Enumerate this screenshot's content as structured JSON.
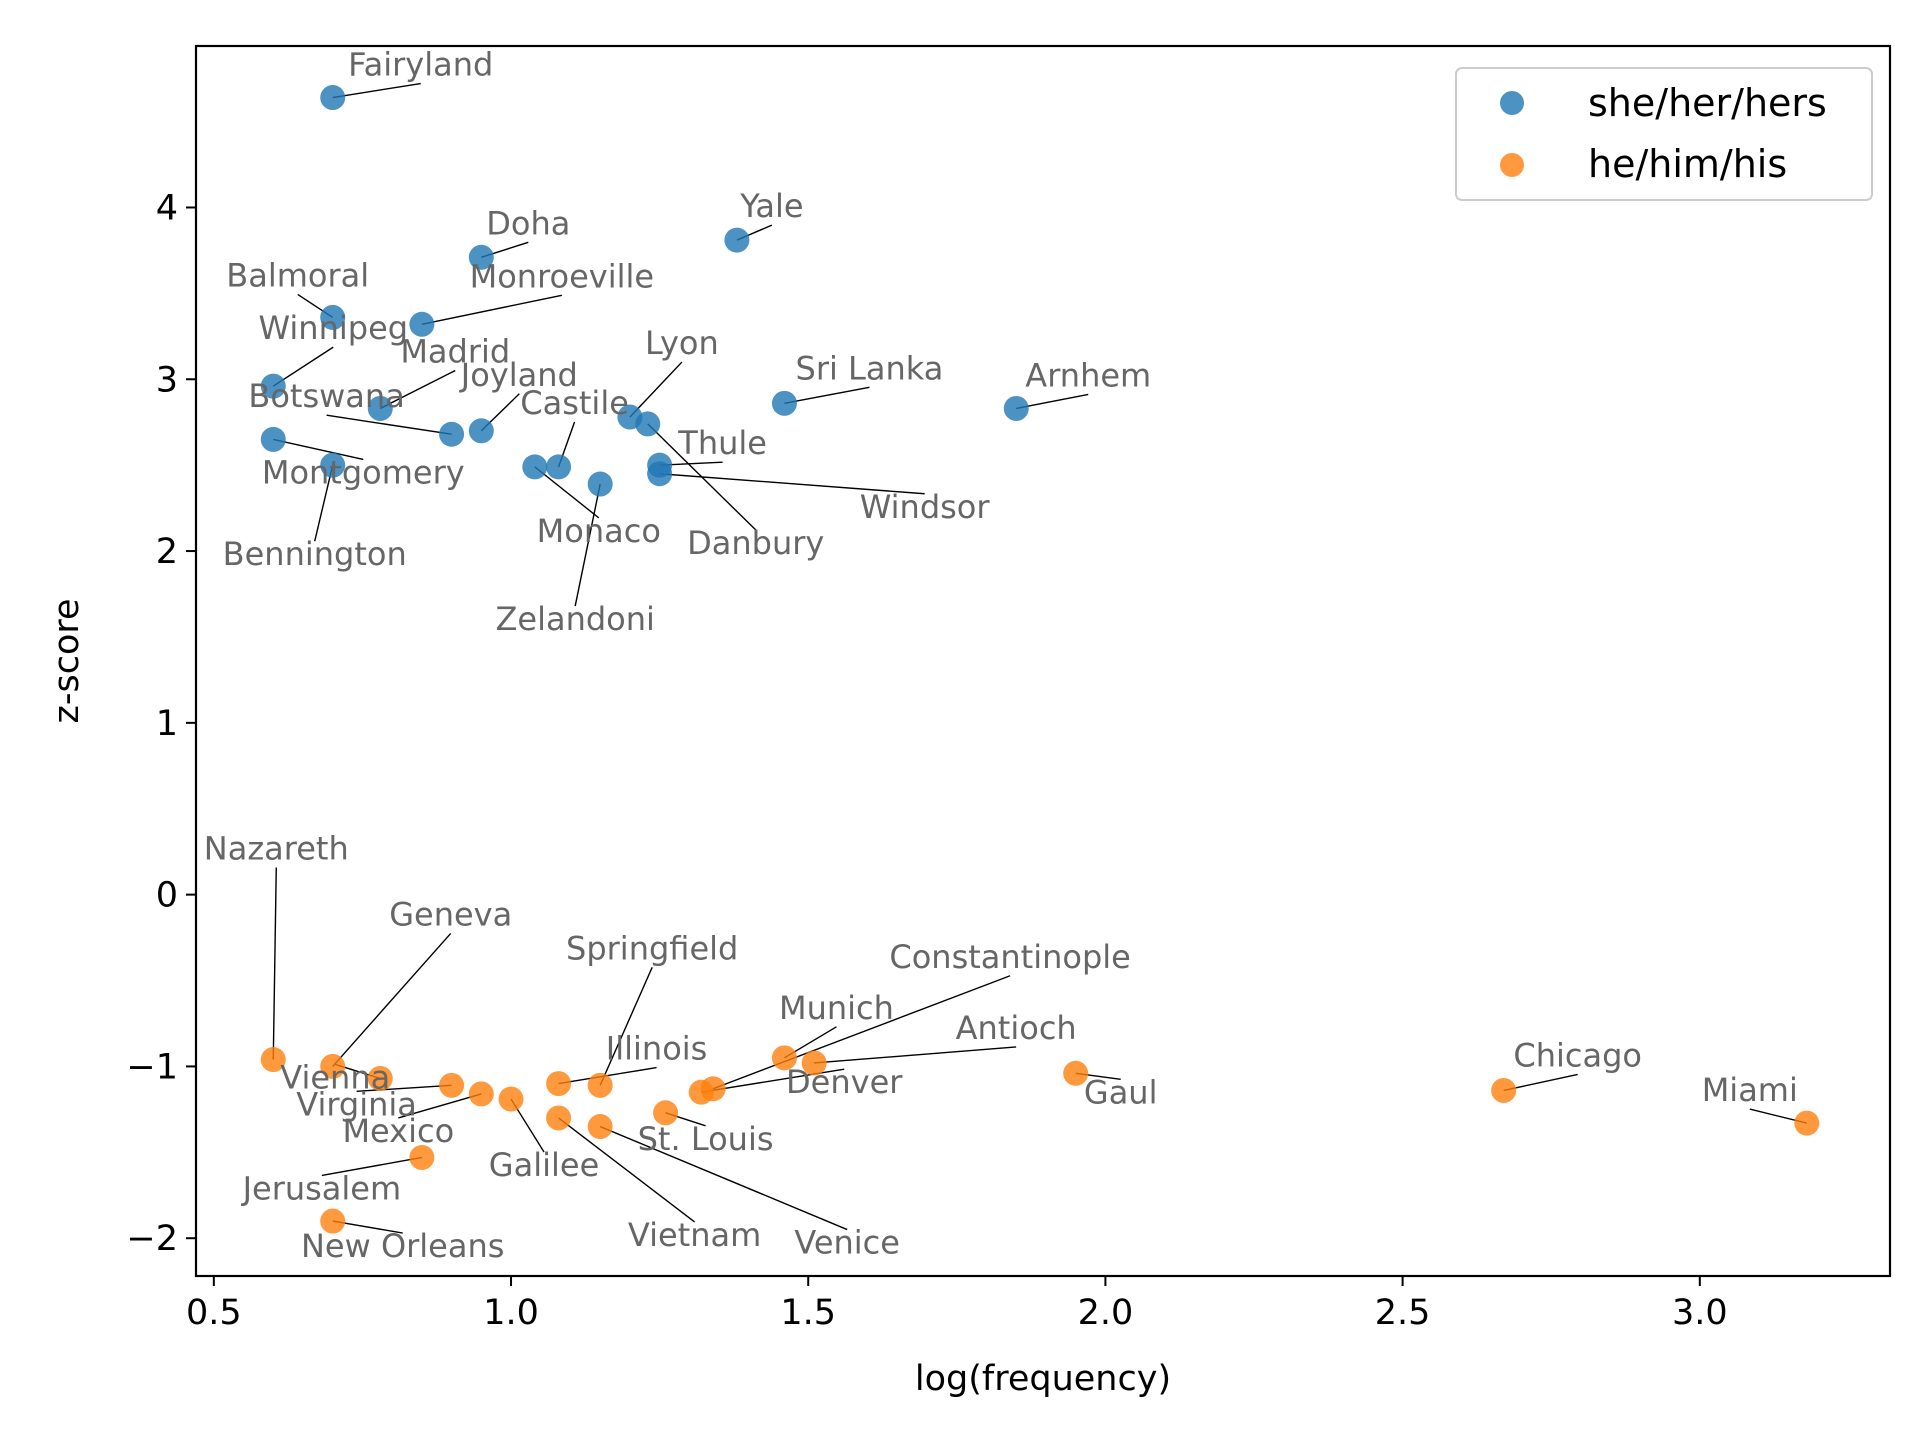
{
  "chart_data": {
    "type": "scatter",
    "xlabel": "log(frequency)",
    "ylabel": "z-score",
    "xlim": [
      0.47,
      3.32
    ],
    "ylim": [
      -2.22,
      4.94
    ],
    "xticks": [
      0.5,
      1.0,
      1.5,
      2.0,
      2.5,
      3.0
    ],
    "xtick_labels": [
      "0.5",
      "1.0",
      "1.5",
      "2.0",
      "2.5",
      "3.0"
    ],
    "yticks": [
      -2,
      -1,
      0,
      1,
      2,
      3,
      4
    ],
    "ytick_labels": [
      "−2",
      "−1",
      "0",
      "1",
      "2",
      "3",
      "4"
    ],
    "grid": false,
    "legend_position": "top-right",
    "series": [
      {
        "name": "she/her/hers",
        "color": "#1f77b4",
        "points": [
          {
            "label": "Fairyland",
            "x": 0.7,
            "y": 4.64
          },
          {
            "label": "Doha",
            "x": 0.95,
            "y": 3.71
          },
          {
            "label": "Yale",
            "x": 1.38,
            "y": 3.81
          },
          {
            "label": "Balmoral",
            "x": 0.7,
            "y": 3.36
          },
          {
            "label": "Monroeville",
            "x": 0.85,
            "y": 3.32
          },
          {
            "label": "Winnipeg",
            "x": 0.6,
            "y": 2.96
          },
          {
            "label": "Madrid",
            "x": 0.78,
            "y": 2.83
          },
          {
            "label": "Botswana",
            "x": 0.9,
            "y": 2.68
          },
          {
            "label": "Joyland",
            "x": 0.95,
            "y": 2.7
          },
          {
            "label": "Lyon",
            "x": 1.2,
            "y": 2.78
          },
          {
            "label": "Castile",
            "x": 1.08,
            "y": 2.49
          },
          {
            "label": "Sri Lanka",
            "x": 1.46,
            "y": 2.86
          },
          {
            "label": "Arnhem",
            "x": 1.85,
            "y": 2.83
          },
          {
            "label": "Danbury",
            "x": 1.23,
            "y": 2.74
          },
          {
            "label": "Montgomery",
            "x": 0.6,
            "y": 2.65
          },
          {
            "label": "Bennington",
            "x": 0.7,
            "y": 2.5
          },
          {
            "label": "Monaco",
            "x": 1.04,
            "y": 2.49
          },
          {
            "label": "Zelandoni",
            "x": 1.15,
            "y": 2.39
          },
          {
            "label": "Thule",
            "x": 1.25,
            "y": 2.5
          },
          {
            "label": "Windsor",
            "x": 1.25,
            "y": 2.45
          }
        ]
      },
      {
        "name": "he/him/his",
        "color": "#ff7f0e",
        "points": [
          {
            "label": "Nazareth",
            "x": 0.6,
            "y": -0.96
          },
          {
            "label": "Geneva",
            "x": 0.7,
            "y": -1.0
          },
          {
            "label": "Vienna",
            "x": 0.78,
            "y": -1.07
          },
          {
            "label": "Virginia",
            "x": 0.9,
            "y": -1.11
          },
          {
            "label": "Mexico",
            "x": 0.95,
            "y": -1.16
          },
          {
            "label": "Galilee",
            "x": 1.0,
            "y": -1.19
          },
          {
            "label": "Springfield",
            "x": 1.15,
            "y": -1.11
          },
          {
            "label": "Illinois",
            "x": 1.08,
            "y": -1.1
          },
          {
            "label": "Vietnam",
            "x": 1.08,
            "y": -1.3
          },
          {
            "label": "Venice",
            "x": 1.15,
            "y": -1.35
          },
          {
            "label": "St. Louis",
            "x": 1.26,
            "y": -1.27
          },
          {
            "label": "Denver",
            "x": 1.32,
            "y": -1.15
          },
          {
            "label": "Constantinople",
            "x": 1.34,
            "y": -1.13
          },
          {
            "label": "Munich",
            "x": 1.46,
            "y": -0.95
          },
          {
            "label": "Antioch",
            "x": 1.51,
            "y": -0.98
          },
          {
            "label": "Gaul",
            "x": 1.95,
            "y": -1.04
          },
          {
            "label": "Chicago",
            "x": 2.67,
            "y": -1.14
          },
          {
            "label": "Miami",
            "x": 3.18,
            "y": -1.33
          },
          {
            "label": "Jerusalem",
            "x": 0.85,
            "y": -1.53
          },
          {
            "label": "New Orleans",
            "x": 0.7,
            "y": -1.9
          }
        ]
      }
    ]
  }
}
